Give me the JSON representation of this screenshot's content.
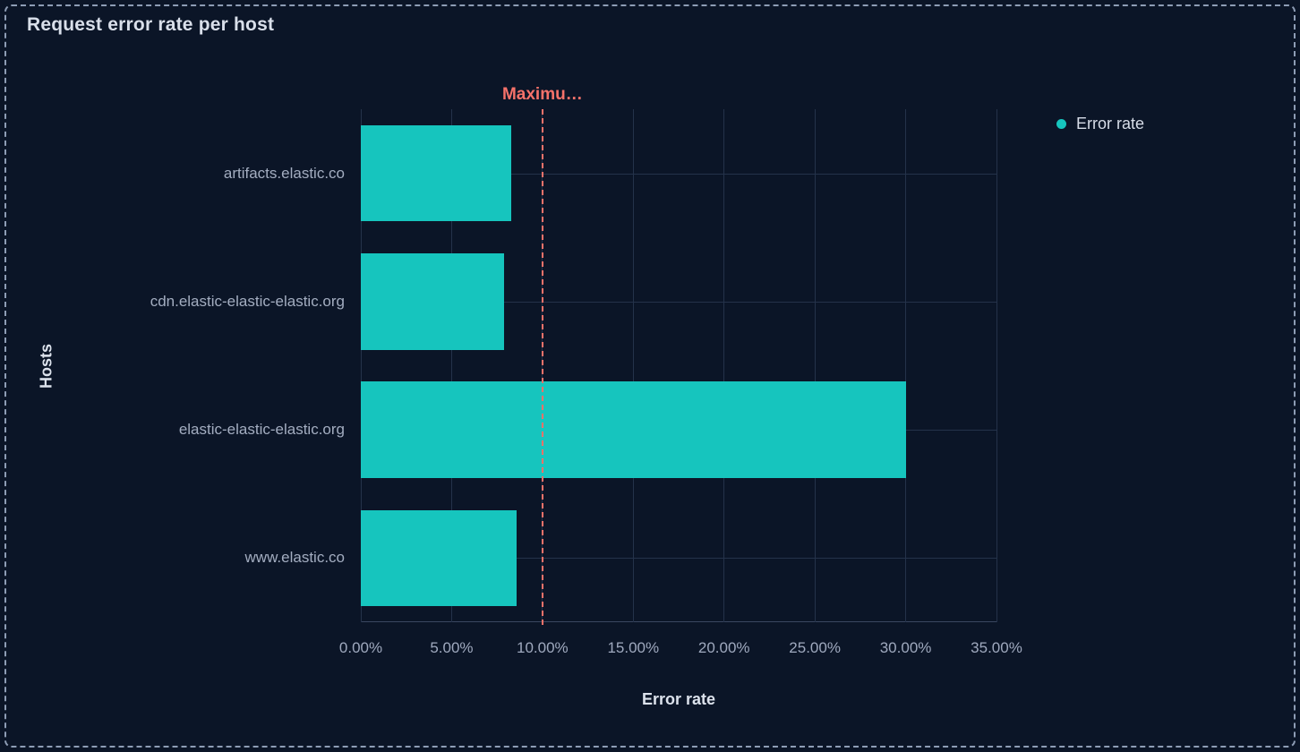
{
  "panel": {
    "title": "Request error rate per host",
    "background_color": "#0B1527",
    "border_color": "#8E9DB5"
  },
  "legend": {
    "position": "right",
    "items": [
      {
        "label": "Error rate",
        "marker": "circle",
        "color": "#16C5BE"
      }
    ]
  },
  "chart_data": {
    "type": "bar",
    "orientation": "horizontal",
    "title": "Request error rate per host",
    "xlabel": "Error rate",
    "ylabel": "Hosts",
    "categories": [
      "artifacts.elastic.co",
      "cdn.elastic-elastic-elastic.org",
      "elastic-elastic-elastic.org",
      "www.elastic.co"
    ],
    "series": [
      {
        "name": "Error rate",
        "color": "#16C5BE",
        "values": [
          8.3,
          7.9,
          30,
          8.6
        ]
      }
    ],
    "value_unit": "%",
    "xlim": [
      0,
      35
    ],
    "x_ticks": {
      "values": [
        0,
        5,
        10,
        15,
        20,
        25,
        30,
        35
      ],
      "labels": [
        "0.00%",
        "5.00%",
        "10.00%",
        "15.00%",
        "20.00%",
        "25.00%",
        "30.00%",
        "35.00%"
      ]
    },
    "grid": true,
    "legend_position": "right",
    "threshold": {
      "label": "Maximu…",
      "value": 10,
      "color": "#F6726A",
      "style": "dashed"
    }
  },
  "colors": {
    "grid_line": "#24324A",
    "axis_line": "#3A4760",
    "tick_label": "#9FA9BE",
    "category_label": "#A3ADC0",
    "axis_title": "#DCE2EC",
    "title": "#D9DFEA",
    "legend_text": "#D7DDE8",
    "bar": "#16C5BE",
    "threshold": "#F6726A"
  }
}
